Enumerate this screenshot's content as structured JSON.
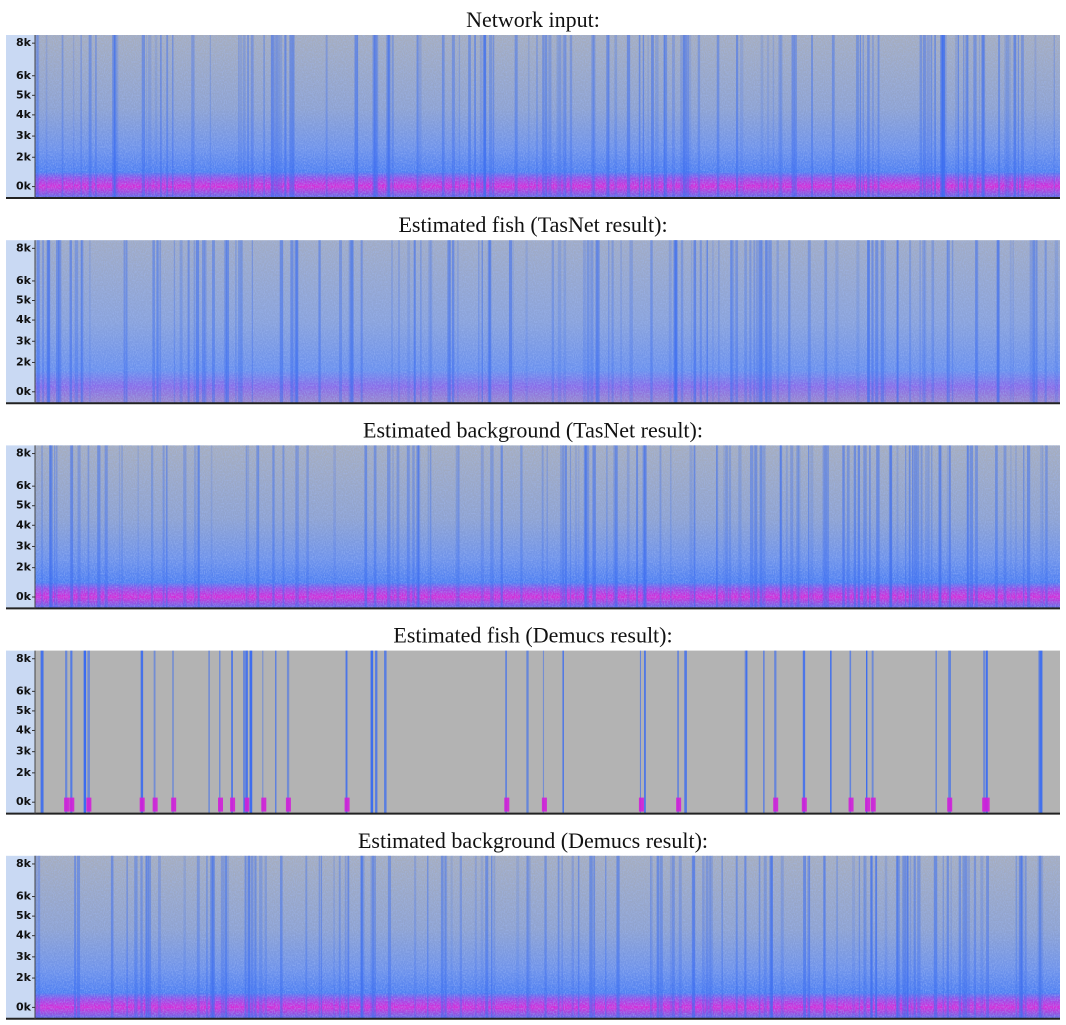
{
  "panels": [
    {
      "title": "Network input:",
      "ticks": [
        "8k",
        "6k",
        "5k",
        "4k",
        "3k",
        "2k",
        "0k"
      ]
    },
    {
      "title": "Estimated fish (TasNet result):",
      "ticks": [
        "8k",
        "6k",
        "5k",
        "4k",
        "3k",
        "2k",
        "0k"
      ]
    },
    {
      "title": "Estimated background (TasNet result):",
      "ticks": [
        "8k",
        "6k",
        "5k",
        "4k",
        "3k",
        "2k",
        "0k"
      ]
    },
    {
      "title": "Estimated fish (Demucs result):",
      "ticks": [
        "8k",
        "6k",
        "5k",
        "4k",
        "3k",
        "2k",
        "0k"
      ]
    },
    {
      "title": "Estimated background (Demucs result):",
      "ticks": [
        "8k",
        "6k",
        "5k",
        "4k",
        "3k",
        "2k",
        "0k"
      ]
    }
  ]
}
